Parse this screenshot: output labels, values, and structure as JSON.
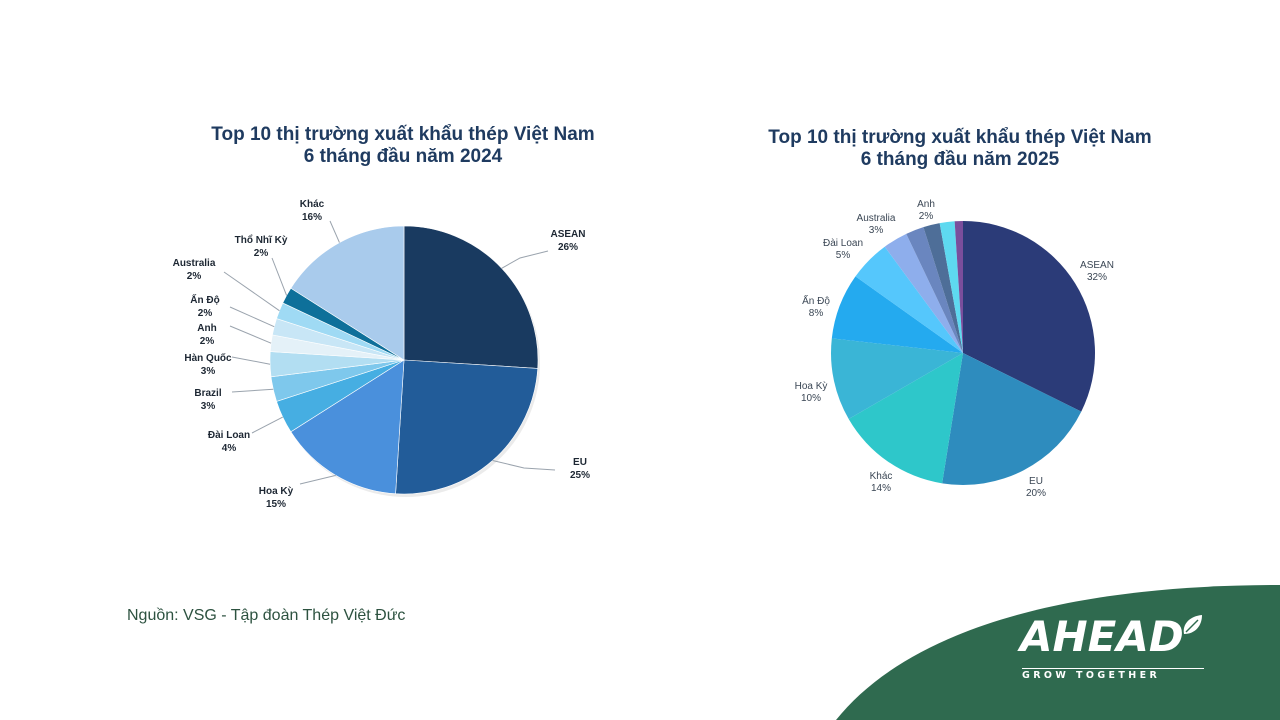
{
  "source_text": "Nguồn: VSG - Tập đoàn Thép Việt Đức",
  "logo": {
    "name": "AHEAD",
    "tagline": "GROW TOGETHER"
  },
  "colors": {
    "brand_green": "#2f6a4f",
    "title": "#1f3b60"
  },
  "chart_data": [
    {
      "type": "pie",
      "title_line1": "Top 10 thị trường xuất khẩu thép Việt Nam",
      "title_line2": "6 tháng đầu năm 2024",
      "categories": [
        "ASEAN",
        "EU",
        "Hoa Kỳ",
        "Đài Loan",
        "Brazil",
        "Hàn Quốc",
        "Anh",
        "Ấn Độ",
        "Australia",
        "Thổ Nhĩ Kỳ",
        "Khác"
      ],
      "values": [
        26,
        25,
        15,
        4,
        3,
        3,
        2,
        2,
        2,
        2,
        16
      ],
      "value_labels": [
        "26%",
        "25%",
        "15%",
        "4%",
        "3%",
        "3%",
        "2%",
        "2%",
        "2%",
        "2%",
        "16%"
      ],
      "colors": [
        "#193a60",
        "#225c99",
        "#4a90dc",
        "#46aee2",
        "#7ec8ec",
        "#b2def2",
        "#e4f1f8",
        "#c8e6f6",
        "#9fdaf4",
        "#0e709a",
        "#a9cbec"
      ]
    },
    {
      "type": "pie",
      "title_line1": "Top 10 thị trường xuất khẩu thép Việt Nam",
      "title_line2": "6 tháng đầu năm 2025",
      "categories": [
        "ASEAN",
        "EU",
        "Khác",
        "Hoa Kỳ",
        "Ấn Độ",
        "Đài Loan",
        "Australia",
        "",
        "Anh",
        "",
        ""
      ],
      "values": [
        32,
        20,
        14,
        10,
        8,
        5,
        3,
        2.2,
        2,
        1.8,
        1
      ],
      "value_labels": [
        "32%",
        "20%",
        "14%",
        "10%",
        "8%",
        "5%",
        "3%",
        "",
        "2%",
        "",
        ""
      ],
      "colors": [
        "#2b3b78",
        "#2e8cbe",
        "#2ec7ca",
        "#3ab5d6",
        "#24aaef",
        "#55c7fc",
        "#8eaeec",
        "#6a86bf",
        "#4e6e98",
        "#5ed9f0",
        "#7a4e9c"
      ]
    }
  ]
}
